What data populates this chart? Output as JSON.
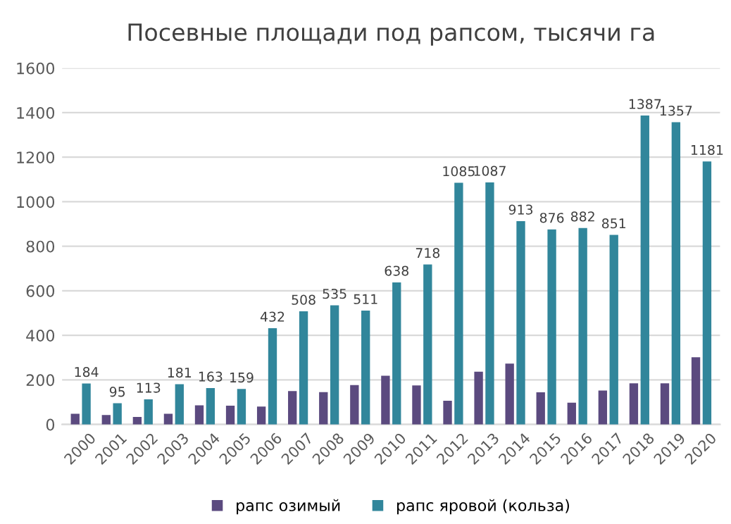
{
  "chart_data": {
    "type": "bar",
    "title": "Посевные площади под рапсом, тысячи га",
    "categories": [
      "2000",
      "2001",
      "2002",
      "2003",
      "2004",
      "2005",
      "2006",
      "2007",
      "2008",
      "2009",
      "2010",
      "2011",
      "2012",
      "2013",
      "2014",
      "2015",
      "2016",
      "2017",
      "2018",
      "2019",
      "2020"
    ],
    "series": [
      {
        "name": "рапс озимый",
        "color": "#5b4a7f",
        "values": [
          48,
          42,
          34,
          48,
          86,
          84,
          80,
          150,
          145,
          177,
          219,
          175,
          106,
          237,
          273,
          144,
          98,
          152,
          185,
          185,
          302
        ]
      },
      {
        "name": "рапс яровой (кольза)",
        "color": "#31869b",
        "values": [
          184,
          95,
          113,
          181,
          163,
          159,
          432,
          508,
          535,
          511,
          638,
          718,
          1085,
          1087,
          913,
          876,
          882,
          851,
          1387,
          1357,
          1181
        ],
        "value_labels": [
          "184",
          "95",
          "113",
          "181",
          "163",
          "159",
          "432",
          "508",
          "535",
          "511",
          "638",
          "718",
          "1085",
          "1087",
          "913",
          "876",
          "882",
          "851",
          "1387",
          "1357",
          "1181"
        ]
      }
    ],
    "ylim": [
      0,
      1600
    ],
    "yticks": [
      0,
      200,
      400,
      600,
      800,
      1000,
      1200,
      1400,
      1600
    ],
    "grid": "y",
    "legend": "bottom"
  }
}
